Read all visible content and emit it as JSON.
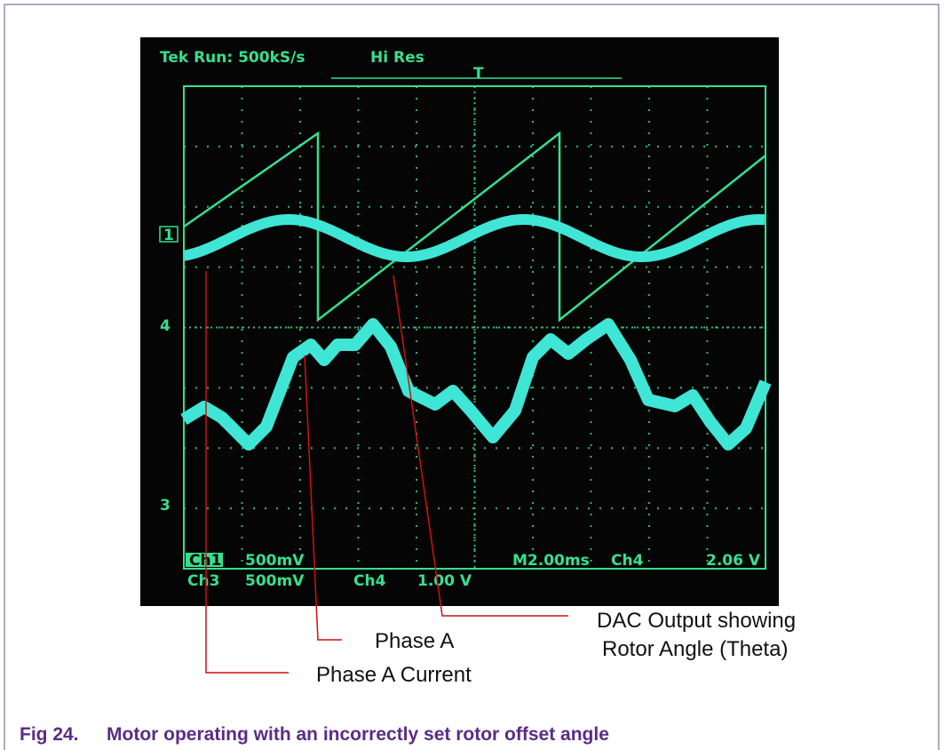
{
  "scope": {
    "header": "Tek Run: 500kS/s",
    "mode": "Hi Res",
    "trigger": "T",
    "markers": [
      "1",
      "4",
      "3"
    ],
    "readout": {
      "ch1": "Ch1",
      "ch1_scale": "500mV",
      "ch3": "Ch3",
      "ch3_scale": "500mV",
      "ch4": "Ch4",
      "ch4_scale": "1.00 V",
      "time": "M2.00ms",
      "trig_src": "Ch4",
      "trig_level": "2.06 V"
    }
  },
  "annotations": {
    "dac_line1": "DAC Output showing",
    "dac_line2": "Rotor Angle (Theta)",
    "phase_a": "Phase A",
    "phase_a_current": "Phase A Current"
  },
  "caption": {
    "label": "Fig 24.",
    "text": "Motor operating with an incorrectly set rotor offset angle"
  }
}
